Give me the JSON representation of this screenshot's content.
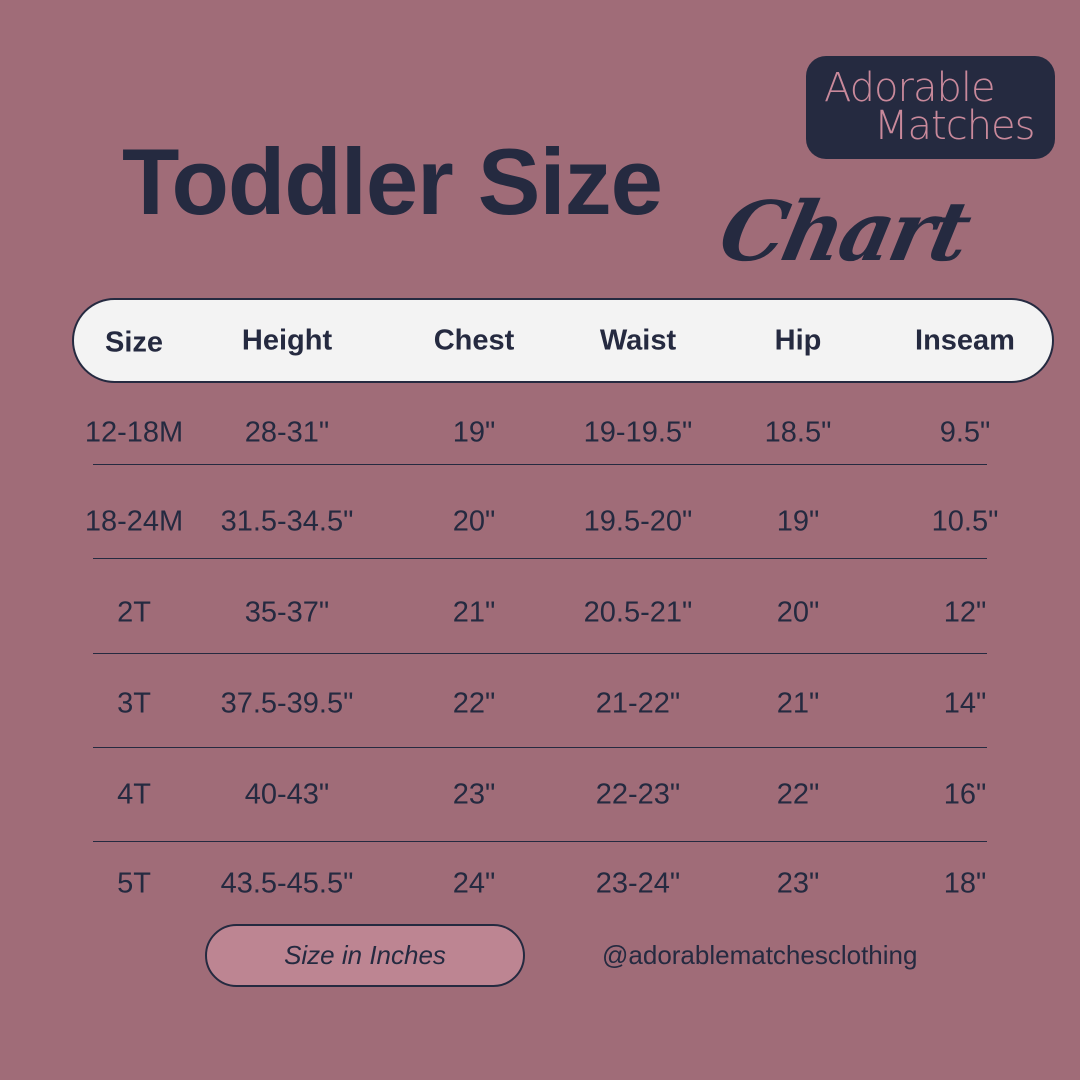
{
  "brand": {
    "line1": "Adorable",
    "line2": "Matches"
  },
  "title": {
    "main": "Toddler Size",
    "script": "Chart"
  },
  "colors": {
    "background": "#a06c78",
    "navy": "#252a40",
    "header_bg": "#f3f3f3",
    "pill": "#bd8592",
    "logo_text": "#c9899b"
  },
  "table": {
    "headers": [
      "Size",
      "Height",
      "Chest",
      "Waist",
      "Hip",
      "Inseam"
    ],
    "rows": [
      [
        "12-18M",
        "28-31\"",
        "19\"",
        "19-19.5\"",
        "18.5\"",
        "9.5\""
      ],
      [
        "18-24M",
        "31.5-34.5\"",
        "20\"",
        "19.5-20\"",
        "19\"",
        "10.5\""
      ],
      [
        "2T",
        "35-37\"",
        "21\"",
        "20.5-21\"",
        "20\"",
        "12\""
      ],
      [
        "3T",
        "37.5-39.5\"",
        "22\"",
        "21-22\"",
        "21\"",
        "14\""
      ],
      [
        "4T",
        "40-43\"",
        "23\"",
        "22-23\"",
        "22\"",
        "16\""
      ],
      [
        "5T",
        "43.5-45.5\"",
        "24\"",
        "23-24\"",
        "23\"",
        "18\""
      ]
    ]
  },
  "footer": {
    "unit_note": "Size in Inches",
    "handle": "@adorablematchesclothing"
  }
}
